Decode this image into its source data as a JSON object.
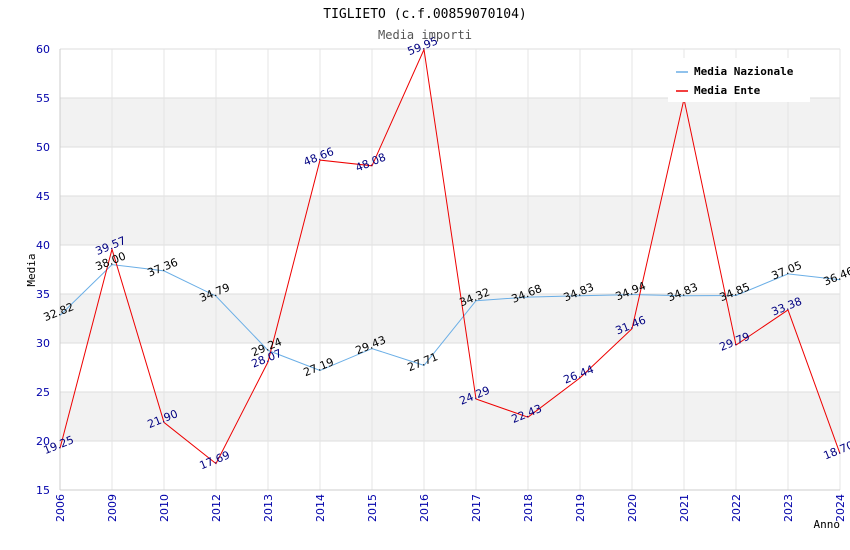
{
  "chart_data": {
    "type": "line",
    "title": "TIGLIETO (c.f.00859070104)",
    "subtitle": "Media importi",
    "ylabel": "Media",
    "xlabel": "Anno",
    "ylim": [
      15,
      60
    ],
    "yticks": [
      15,
      20,
      25,
      30,
      35,
      40,
      45,
      50,
      55,
      60
    ],
    "categories": [
      "2006",
      "2009",
      "2010",
      "2012",
      "2013",
      "2014",
      "2015",
      "2016",
      "2017",
      "2018",
      "2019",
      "2020",
      "2021",
      "2022",
      "2023",
      "2024"
    ],
    "series": [
      {
        "name": "Media Nazionale",
        "color": "#6aaee6",
        "label_color": "#000000",
        "values": [
          32.82,
          38.0,
          37.36,
          34.79,
          29.24,
          27.19,
          29.43,
          27.71,
          34.32,
          34.68,
          34.83,
          34.94,
          34.83,
          34.85,
          37.05,
          36.46
        ],
        "labels": [
          "32.82",
          "38.00",
          "37.36",
          "34.79",
          "29.24",
          "27.19",
          "29.43",
          "27.71",
          "34.32",
          "34.68",
          "34.83",
          "34.94",
          "34.83",
          "34.85",
          "37.05",
          "36.46"
        ]
      },
      {
        "name": "Media Ente",
        "color": "#ee0000",
        "label_color": "#000080",
        "values": [
          19.25,
          39.57,
          21.9,
          17.69,
          28.07,
          48.66,
          48.08,
          59.95,
          24.29,
          22.43,
          26.44,
          31.46,
          54.9,
          29.79,
          33.38,
          18.7
        ],
        "labels": [
          "19.25",
          "39.57",
          "21.90",
          "17.69",
          "28.07",
          "48.66",
          "48.08",
          "59.95",
          "24.29",
          "22.43",
          "26.44",
          "31.46",
          "",
          "29.79",
          "33.38",
          "18.70"
        ]
      }
    ],
    "legend_position": "top-right",
    "grid": true,
    "band_color": "#f2f2f2",
    "tick_color": "#0000aa"
  }
}
